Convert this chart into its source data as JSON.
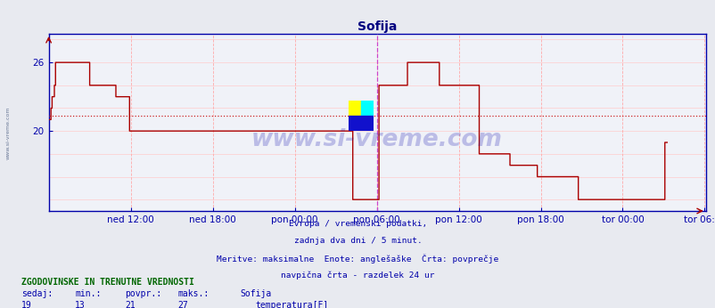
{
  "title": "Sofija",
  "title_color": "#000080",
  "bg_color": "#e8eaf0",
  "plot_bg_color": "#f0f2f8",
  "line_color": "#aa0000",
  "avg_line_color": "#cc2222",
  "avg_line_value": 21.3,
  "vline_color": "#cc44cc",
  "vline_x": 288,
  "grid_color_v": "#ffaaaa",
  "grid_color_h": "#ffcccc",
  "axis_color": "#0000aa",
  "tick_color": "#0000aa",
  "ylim_min": 13,
  "ylim_max": 28.5,
  "yticks": [
    20,
    26
  ],
  "xtick_labels": [
    "ned 12:00",
    "ned 18:00",
    "pon 00:00",
    "pon 06:00",
    "pon 12:00",
    "pon 18:00",
    "tor 00:00",
    "tor 06:00"
  ],
  "xtick_positions": [
    72,
    144,
    216,
    288,
    360,
    432,
    504,
    576
  ],
  "total_points": 577,
  "subtitle_lines": [
    "Evropa / vremenski podatki,",
    "zadnja dva dni / 5 minut.",
    "Meritve: maksimalne  Enote: anglešaške  Črta: povprečje",
    "navpična črta - razdelek 24 ur"
  ],
  "subtitle_color": "#0000aa",
  "footer_title": "ZGODOVINSKE IN TRENUTNE VREDNOSTI",
  "footer_title_color": "#006600",
  "footer_color": "#0000aa",
  "col_headers": [
    "sedaj:",
    "min.:",
    "povpr.:",
    "maks.:",
    "Sofija"
  ],
  "col_values": [
    "19",
    "13",
    "21",
    "27"
  ],
  "legend_label": "temperatura[F]",
  "legend_color": "#cc0000",
  "watermark": "www.si-vreme.com",
  "watermark_color": "#0000aa",
  "watermark_alpha": 0.22,
  "temp_data": [
    21,
    21,
    22,
    23,
    23,
    24,
    26,
    26,
    26,
    26,
    26,
    26,
    26,
    26,
    26,
    26,
    26,
    26,
    26,
    26,
    26,
    26,
    26,
    26,
    26,
    26,
    26,
    26,
    26,
    26,
    26,
    26,
    26,
    26,
    26,
    26,
    24,
    24,
    24,
    24,
    24,
    24,
    24,
    24,
    24,
    24,
    24,
    24,
    24,
    24,
    24,
    24,
    24,
    24,
    24,
    24,
    24,
    24,
    24,
    23,
    23,
    23,
    23,
    23,
    23,
    23,
    23,
    23,
    23,
    23,
    23,
    20,
    20,
    20,
    20,
    20,
    20,
    20,
    20,
    20,
    20,
    20,
    20,
    20,
    20,
    20,
    20,
    20,
    20,
    20,
    20,
    20,
    20,
    20,
    20,
    20,
    20,
    20,
    20,
    20,
    20,
    20,
    20,
    20,
    20,
    20,
    20,
    20,
    20,
    20,
    20,
    20,
    20,
    20,
    20,
    20,
    20,
    20,
    20,
    20,
    20,
    20,
    20,
    20,
    20,
    20,
    20,
    20,
    20,
    20,
    20,
    20,
    20,
    20,
    20,
    20,
    20,
    20,
    20,
    20,
    20,
    20,
    20,
    20,
    20,
    20,
    20,
    20,
    20,
    20,
    20,
    20,
    20,
    20,
    20,
    20,
    20,
    20,
    20,
    20,
    20,
    20,
    20,
    20,
    20,
    20,
    20,
    20,
    20,
    20,
    20,
    20,
    20,
    20,
    20,
    20,
    20,
    20,
    20,
    20,
    20,
    20,
    20,
    20,
    20,
    20,
    20,
    20,
    20,
    20,
    20,
    20,
    20,
    20,
    20,
    20,
    20,
    20,
    20,
    20,
    20,
    20,
    20,
    20,
    20,
    20,
    20,
    20,
    20,
    20,
    20,
    20,
    20,
    20,
    20,
    20,
    20,
    20,
    20,
    20,
    20,
    20,
    20,
    20,
    20,
    20,
    20,
    20,
    20,
    20,
    20,
    20,
    20,
    20,
    20,
    20,
    20,
    20,
    20,
    20,
    20,
    20,
    20,
    20,
    20,
    20,
    20,
    20,
    20,
    20,
    20,
    20,
    20,
    20,
    20,
    20,
    20,
    20,
    20,
    20,
    20,
    20,
    20,
    20,
    20,
    20,
    20,
    14,
    14,
    14,
    14,
    14,
    14,
    14,
    14,
    14,
    14,
    14,
    14,
    14,
    14,
    14,
    14,
    14,
    14,
    14,
    14,
    14,
    14,
    14,
    24,
    24,
    24,
    24,
    24,
    24,
    24,
    24,
    24,
    24,
    24,
    24,
    24,
    24,
    24,
    24,
    24,
    24,
    24,
    24,
    24,
    24,
    24,
    24,
    24,
    26,
    26,
    26,
    26,
    26,
    26,
    26,
    26,
    26,
    26,
    26,
    26,
    26,
    26,
    26,
    26,
    26,
    26,
    26,
    26,
    26,
    26,
    26,
    26,
    26,
    26,
    26,
    26,
    24,
    24,
    24,
    24,
    24,
    24,
    24,
    24,
    24,
    24,
    24,
    24,
    24,
    24,
    24,
    24,
    24,
    24,
    24,
    24,
    24,
    24,
    24,
    24,
    24,
    24,
    24,
    24,
    24,
    24,
    24,
    24,
    24,
    24,
    24,
    18,
    18,
    18,
    18,
    18,
    18,
    18,
    18,
    18,
    18,
    18,
    18,
    18,
    18,
    18,
    18,
    18,
    18,
    18,
    18,
    18,
    18,
    18,
    18,
    18,
    18,
    18,
    17,
    17,
    17,
    17,
    17,
    17,
    17,
    17,
    17,
    17,
    17,
    17,
    17,
    17,
    17,
    17,
    17,
    17,
    17,
    17,
    17,
    17,
    17,
    17,
    16,
    16,
    16,
    16,
    16,
    16,
    16,
    16,
    16,
    16,
    16,
    16,
    16,
    16,
    16,
    16,
    16,
    16,
    16,
    16,
    16,
    16,
    16,
    16,
    16,
    16,
    16,
    16,
    16,
    16,
    16,
    16,
    16,
    16,
    16,
    16,
    14,
    14,
    14,
    14,
    14,
    14,
    14,
    14,
    14,
    14,
    14,
    14,
    14,
    14,
    14,
    14,
    14,
    14,
    14,
    14,
    14,
    14,
    14,
    14,
    14,
    14,
    14,
    14,
    14,
    14,
    14,
    14,
    14,
    14,
    14,
    14,
    14,
    14,
    14,
    14,
    14,
    14,
    14,
    14,
    14,
    14,
    14,
    14,
    14,
    14,
    14,
    14,
    14,
    14,
    14,
    14,
    14,
    14,
    14,
    14,
    14,
    14,
    14,
    14,
    14,
    14,
    14,
    14,
    14,
    14,
    14,
    14,
    14,
    14,
    14,
    14,
    19,
    19,
    19
  ]
}
